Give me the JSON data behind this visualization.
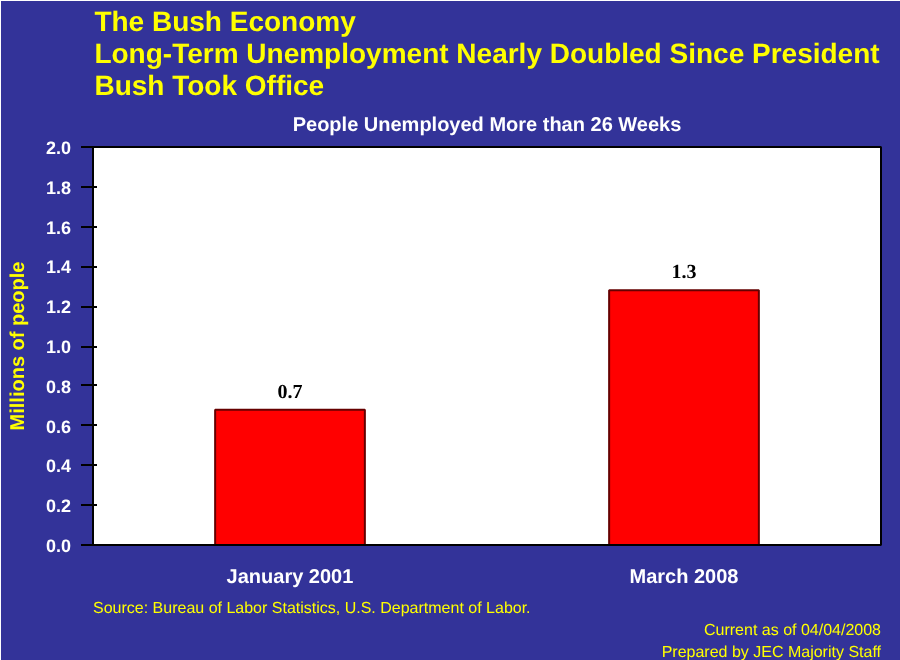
{
  "chart_data": {
    "type": "bar",
    "title": "The Bush Economy\nLong-Term Unemployment Nearly Doubled Since President\nBush Took Office",
    "subtitle": "People Unemployed More than 26 Weeks",
    "ylabel": "Millions of people",
    "categories": [
      "January 2001",
      "March 2008"
    ],
    "values": [
      0.68,
      1.28
    ],
    "value_labels": [
      "0.7",
      "1.3"
    ],
    "color": "#ff0000",
    "ylim": [
      0,
      2
    ],
    "yticks": [
      {
        "value": 0,
        "label": "0.0"
      },
      {
        "value": 0.2,
        "label": "0.2"
      },
      {
        "value": 0.4,
        "label": "0.4"
      },
      {
        "value": 0.6,
        "label": "0.6"
      },
      {
        "value": 0.8,
        "label": "0.8"
      },
      {
        "value": 1.0,
        "label": "1.0"
      },
      {
        "value": 1.2,
        "label": "1.2"
      },
      {
        "value": 1.4,
        "label": "1.4"
      },
      {
        "value": 1.6,
        "label": "1.6"
      },
      {
        "value": 1.8,
        "label": "1.8"
      },
      {
        "value": 2.0,
        "label": "2.0"
      }
    ],
    "grid": false,
    "annotations": [
      "Source:   Bureau of Labor Statistics, U.S. Department of Labor.",
      "Current as of 04/04/2008",
      "Prepared by JEC Majority Staff"
    ]
  }
}
